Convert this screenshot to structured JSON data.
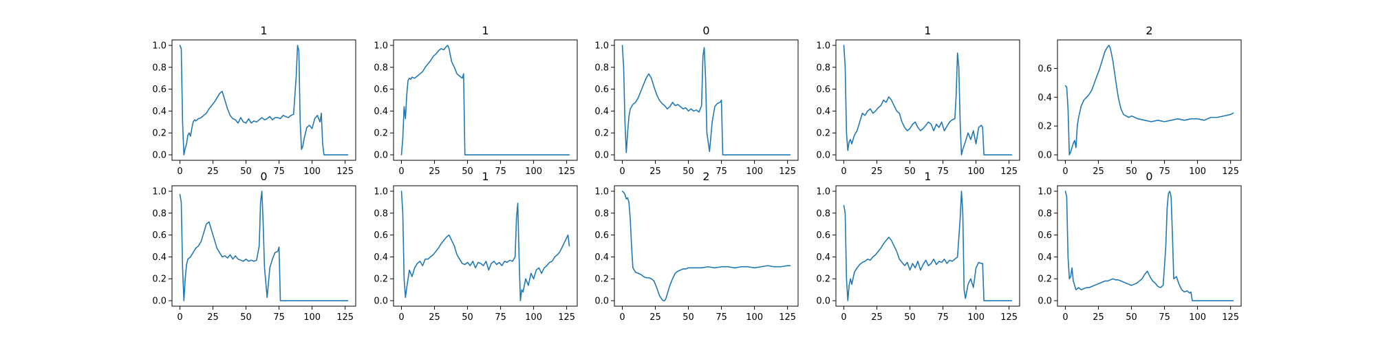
{
  "figure": {
    "background": "#ffffff",
    "line_color": "#1f77b4"
  },
  "chart_data": [
    {
      "type": "line",
      "title": "1",
      "xlim": [
        -6,
        133
      ],
      "ylim": [
        -0.05,
        1.05
      ],
      "xticks": [
        0,
        25,
        50,
        75,
        100,
        125
      ],
      "yticks": [
        0.0,
        0.2,
        0.4,
        0.6,
        0.8,
        1.0
      ],
      "ytick_labels": [
        "0.0",
        "0.2",
        "0.4",
        "0.6",
        "0.8",
        "1.0"
      ],
      "x": [
        0,
        1,
        2,
        3,
        4,
        5,
        6,
        7,
        8,
        9,
        10,
        11,
        12,
        14,
        16,
        18,
        20,
        22,
        24,
        26,
        28,
        30,
        32,
        34,
        36,
        38,
        40,
        42,
        44,
        46,
        48,
        50,
        52,
        54,
        56,
        58,
        60,
        62,
        64,
        66,
        68,
        70,
        72,
        74,
        76,
        78,
        80,
        82,
        84,
        86,
        88,
        89,
        90,
        91,
        92,
        93,
        94,
        96,
        98,
        100,
        102,
        104,
        106,
        107,
        108,
        109,
        112,
        115,
        120,
        127
      ],
      "y": [
        1.0,
        0.97,
        0.3,
        0.0,
        0.06,
        0.1,
        0.18,
        0.2,
        0.17,
        0.24,
        0.3,
        0.32,
        0.31,
        0.33,
        0.34,
        0.36,
        0.38,
        0.42,
        0.45,
        0.48,
        0.52,
        0.56,
        0.58,
        0.5,
        0.42,
        0.36,
        0.33,
        0.32,
        0.29,
        0.34,
        0.3,
        0.29,
        0.33,
        0.29,
        0.31,
        0.3,
        0.32,
        0.34,
        0.32,
        0.33,
        0.35,
        0.32,
        0.34,
        0.34,
        0.33,
        0.36,
        0.35,
        0.34,
        0.36,
        0.37,
        0.72,
        1.0,
        0.95,
        0.3,
        0.05,
        0.08,
        0.15,
        0.25,
        0.27,
        0.24,
        0.33,
        0.36,
        0.3,
        0.38,
        0.1,
        0.0,
        0.0,
        0.0,
        0.0,
        0.0
      ]
    },
    {
      "type": "line",
      "title": "1",
      "xlim": [
        -6,
        133
      ],
      "ylim": [
        -0.05,
        1.05
      ],
      "xticks": [
        0,
        25,
        50,
        75,
        100,
        125
      ],
      "yticks": [
        0.0,
        0.2,
        0.4,
        0.6,
        0.8,
        1.0
      ],
      "ytick_labels": [
        "0.0",
        "0.2",
        "0.4",
        "0.6",
        "0.8",
        "1.0"
      ],
      "x": [
        0,
        1,
        2,
        3,
        4,
        5,
        6,
        7,
        8,
        10,
        12,
        14,
        16,
        18,
        20,
        22,
        24,
        26,
        28,
        30,
        32,
        34,
        35,
        36,
        38,
        40,
        42,
        44,
        46,
        47,
        48,
        50,
        60,
        80,
        100,
        127
      ],
      "y": [
        0.0,
        0.15,
        0.44,
        0.33,
        0.55,
        0.68,
        0.7,
        0.69,
        0.71,
        0.7,
        0.72,
        0.74,
        0.76,
        0.8,
        0.83,
        0.86,
        0.9,
        0.92,
        0.95,
        0.97,
        0.96,
        0.99,
        1.0,
        0.97,
        0.85,
        0.8,
        0.74,
        0.72,
        0.7,
        0.74,
        0.0,
        0.0,
        0.0,
        0.0,
        0.0,
        0.0
      ]
    },
    {
      "type": "line",
      "title": "0",
      "xlim": [
        -6,
        133
      ],
      "ylim": [
        -0.05,
        1.05
      ],
      "xticks": [
        0,
        25,
        50,
        75,
        100,
        125
      ],
      "yticks": [
        0.0,
        0.2,
        0.4,
        0.6,
        0.8,
        1.0
      ],
      "ytick_labels": [
        "0.0",
        "0.2",
        "0.4",
        "0.6",
        "0.8",
        "1.0"
      ],
      "x": [
        0,
        1,
        2,
        3,
        4,
        5,
        6,
        8,
        10,
        12,
        14,
        16,
        18,
        20,
        22,
        24,
        26,
        28,
        30,
        32,
        34,
        36,
        38,
        40,
        42,
        44,
        46,
        48,
        50,
        52,
        54,
        56,
        58,
        60,
        61,
        62,
        63,
        64,
        66,
        68,
        70,
        72,
        74,
        75,
        76,
        80,
        90,
        100,
        127
      ],
      "y": [
        1.0,
        0.8,
        0.3,
        0.02,
        0.2,
        0.35,
        0.42,
        0.46,
        0.48,
        0.52,
        0.58,
        0.64,
        0.7,
        0.74,
        0.7,
        0.62,
        0.55,
        0.5,
        0.47,
        0.45,
        0.42,
        0.44,
        0.48,
        0.45,
        0.46,
        0.44,
        0.42,
        0.43,
        0.4,
        0.42,
        0.4,
        0.41,
        0.39,
        0.45,
        0.9,
        0.98,
        0.7,
        0.2,
        0.03,
        0.3,
        0.44,
        0.47,
        0.48,
        0.5,
        0.0,
        0.0,
        0.0,
        0.0,
        0.0
      ]
    },
    {
      "type": "line",
      "title": "1",
      "xlim": [
        -6,
        133
      ],
      "ylim": [
        -0.05,
        1.05
      ],
      "xticks": [
        0,
        25,
        50,
        75,
        100,
        125
      ],
      "yticks": [
        0.0,
        0.2,
        0.4,
        0.6,
        0.8,
        1.0
      ],
      "ytick_labels": [
        "0.0",
        "0.2",
        "0.4",
        "0.6",
        "0.8",
        "1.0"
      ],
      "x": [
        0,
        1,
        2,
        3,
        4,
        5,
        6,
        8,
        10,
        12,
        14,
        16,
        18,
        20,
        22,
        24,
        26,
        28,
        30,
        32,
        34,
        36,
        38,
        40,
        42,
        44,
        46,
        48,
        50,
        52,
        54,
        56,
        58,
        60,
        62,
        64,
        66,
        68,
        70,
        72,
        74,
        76,
        78,
        80,
        82,
        84,
        85,
        86,
        87,
        88,
        89,
        90,
        92,
        94,
        96,
        98,
        100,
        102,
        104,
        105,
        106,
        110,
        127
      ],
      "y": [
        1.0,
        0.8,
        0.2,
        0.04,
        0.12,
        0.14,
        0.1,
        0.18,
        0.22,
        0.3,
        0.38,
        0.36,
        0.4,
        0.42,
        0.38,
        0.4,
        0.43,
        0.45,
        0.5,
        0.48,
        0.53,
        0.5,
        0.45,
        0.4,
        0.38,
        0.3,
        0.25,
        0.22,
        0.24,
        0.28,
        0.3,
        0.25,
        0.22,
        0.24,
        0.27,
        0.3,
        0.28,
        0.22,
        0.28,
        0.25,
        0.3,
        0.22,
        0.26,
        0.3,
        0.32,
        0.33,
        0.55,
        0.93,
        0.8,
        0.3,
        0.0,
        0.05,
        0.12,
        0.2,
        0.14,
        0.22,
        0.1,
        0.25,
        0.27,
        0.25,
        0.0,
        0.0,
        0.0
      ]
    },
    {
      "type": "line",
      "title": "2",
      "xlim": [
        -6,
        133
      ],
      "ylim": [
        -0.038,
        0.798
      ],
      "xticks": [
        0,
        25,
        50,
        75,
        100,
        125
      ],
      "yticks": [
        0.0,
        0.2,
        0.4,
        0.6
      ],
      "ytick_labels": [
        "0.0",
        "0.2",
        "0.4",
        "0.6"
      ],
      "x": [
        0,
        1,
        2,
        3,
        4,
        5,
        6,
        7,
        8,
        9,
        10,
        12,
        14,
        16,
        18,
        20,
        22,
        24,
        26,
        28,
        30,
        32,
        33,
        34,
        36,
        38,
        40,
        42,
        44,
        46,
        48,
        50,
        55,
        60,
        65,
        70,
        75,
        80,
        85,
        90,
        95,
        100,
        105,
        110,
        115,
        120,
        125,
        127
      ],
      "y": [
        0.48,
        0.47,
        0.32,
        0.0,
        0.02,
        0.05,
        0.08,
        0.1,
        0.05,
        0.2,
        0.26,
        0.34,
        0.38,
        0.4,
        0.42,
        0.45,
        0.5,
        0.55,
        0.6,
        0.66,
        0.72,
        0.75,
        0.76,
        0.74,
        0.65,
        0.52,
        0.4,
        0.32,
        0.28,
        0.27,
        0.26,
        0.27,
        0.25,
        0.24,
        0.23,
        0.24,
        0.23,
        0.24,
        0.25,
        0.24,
        0.25,
        0.25,
        0.24,
        0.26,
        0.26,
        0.27,
        0.28,
        0.29
      ]
    },
    {
      "type": "line",
      "title": "0",
      "xlim": [
        -6,
        133
      ],
      "ylim": [
        -0.05,
        1.05
      ],
      "xticks": [
        0,
        25,
        50,
        75,
        100,
        125
      ],
      "yticks": [
        0.0,
        0.2,
        0.4,
        0.6,
        0.8,
        1.0
      ],
      "ytick_labels": [
        "0.0",
        "0.2",
        "0.4",
        "0.6",
        "0.8",
        "1.0"
      ],
      "x": [
        0,
        1,
        2,
        3,
        4,
        5,
        6,
        8,
        10,
        12,
        14,
        16,
        18,
        20,
        22,
        24,
        26,
        28,
        30,
        32,
        34,
        36,
        38,
        40,
        42,
        44,
        46,
        48,
        50,
        52,
        54,
        56,
        58,
        60,
        61,
        62,
        63,
        64,
        66,
        68,
        70,
        72,
        74,
        75,
        76,
        80,
        90,
        100,
        127
      ],
      "y": [
        0.97,
        0.9,
        0.3,
        0.0,
        0.2,
        0.33,
        0.38,
        0.4,
        0.44,
        0.48,
        0.5,
        0.54,
        0.62,
        0.7,
        0.72,
        0.64,
        0.56,
        0.48,
        0.44,
        0.4,
        0.41,
        0.39,
        0.42,
        0.38,
        0.41,
        0.38,
        0.37,
        0.36,
        0.38,
        0.36,
        0.37,
        0.36,
        0.37,
        0.5,
        0.9,
        1.0,
        0.7,
        0.3,
        0.03,
        0.3,
        0.38,
        0.44,
        0.45,
        0.49,
        0.0,
        0.0,
        0.0,
        0.0,
        0.0
      ]
    },
    {
      "type": "line",
      "title": "1",
      "xlim": [
        -6,
        133
      ],
      "ylim": [
        -0.05,
        1.05
      ],
      "xticks": [
        0,
        25,
        50,
        75,
        100,
        125
      ],
      "yticks": [
        0.0,
        0.2,
        0.4,
        0.6,
        0.8,
        1.0
      ],
      "ytick_labels": [
        "0.0",
        "0.2",
        "0.4",
        "0.6",
        "0.8",
        "1.0"
      ],
      "x": [
        0,
        1,
        2,
        3,
        4,
        5,
        6,
        8,
        10,
        12,
        14,
        16,
        18,
        20,
        22,
        24,
        26,
        28,
        30,
        32,
        34,
        36,
        38,
        40,
        42,
        44,
        46,
        48,
        50,
        52,
        54,
        56,
        58,
        60,
        62,
        64,
        66,
        68,
        70,
        72,
        74,
        76,
        78,
        80,
        82,
        84,
        86,
        87,
        88,
        89,
        90,
        91,
        92,
        94,
        96,
        98,
        100,
        102,
        104,
        106,
        108,
        110,
        112,
        114,
        116,
        118,
        120,
        122,
        124,
        126,
        127
      ],
      "y": [
        1.0,
        0.8,
        0.2,
        0.03,
        0.12,
        0.2,
        0.28,
        0.22,
        0.3,
        0.34,
        0.36,
        0.32,
        0.38,
        0.38,
        0.4,
        0.42,
        0.45,
        0.48,
        0.52,
        0.55,
        0.58,
        0.6,
        0.55,
        0.5,
        0.42,
        0.38,
        0.34,
        0.33,
        0.35,
        0.32,
        0.36,
        0.3,
        0.35,
        0.34,
        0.32,
        0.36,
        0.28,
        0.34,
        0.36,
        0.33,
        0.35,
        0.32,
        0.36,
        0.35,
        0.37,
        0.36,
        0.4,
        0.75,
        0.89,
        0.4,
        0.0,
        0.1,
        0.08,
        0.2,
        0.14,
        0.25,
        0.2,
        0.28,
        0.3,
        0.25,
        0.3,
        0.32,
        0.35,
        0.36,
        0.4,
        0.42,
        0.45,
        0.5,
        0.55,
        0.6,
        0.5
      ]
    },
    {
      "type": "line",
      "title": "2",
      "xlim": [
        -6,
        133
      ],
      "ylim": [
        -0.05,
        1.05
      ],
      "xticks": [
        0,
        25,
        50,
        75,
        100,
        125
      ],
      "yticks": [
        0.0,
        0.2,
        0.4,
        0.6,
        0.8,
        1.0
      ],
      "ytick_labels": [
        "0.0",
        "0.2",
        "0.4",
        "0.6",
        "0.8",
        "1.0"
      ],
      "x": [
        0,
        1,
        2,
        3,
        4,
        5,
        6,
        7,
        8,
        9,
        10,
        12,
        14,
        16,
        18,
        20,
        22,
        24,
        26,
        28,
        30,
        31,
        32,
        33,
        34,
        36,
        38,
        40,
        42,
        44,
        46,
        48,
        50,
        55,
        60,
        65,
        70,
        75,
        80,
        85,
        90,
        95,
        100,
        105,
        110,
        115,
        120,
        125,
        127
      ],
      "y": [
        1.0,
        0.99,
        0.97,
        0.93,
        0.94,
        0.9,
        0.75,
        0.5,
        0.3,
        0.28,
        0.26,
        0.25,
        0.24,
        0.22,
        0.21,
        0.21,
        0.2,
        0.18,
        0.12,
        0.05,
        0.01,
        0.0,
        0.0,
        0.02,
        0.06,
        0.14,
        0.2,
        0.25,
        0.27,
        0.28,
        0.29,
        0.29,
        0.3,
        0.3,
        0.3,
        0.31,
        0.3,
        0.31,
        0.31,
        0.3,
        0.31,
        0.31,
        0.3,
        0.31,
        0.32,
        0.31,
        0.31,
        0.32,
        0.32
      ]
    },
    {
      "type": "line",
      "title": "1",
      "xlim": [
        -6,
        133
      ],
      "ylim": [
        -0.05,
        1.05
      ],
      "xticks": [
        0,
        25,
        50,
        75,
        100,
        125
      ],
      "yticks": [
        0.0,
        0.2,
        0.4,
        0.6,
        0.8,
        1.0
      ],
      "ytick_labels": [
        "0.0",
        "0.2",
        "0.4",
        "0.6",
        "0.8",
        "1.0"
      ],
      "x": [
        0,
        1,
        2,
        3,
        4,
        5,
        6,
        8,
        10,
        12,
        14,
        16,
        18,
        20,
        22,
        24,
        26,
        28,
        30,
        32,
        34,
        36,
        38,
        40,
        42,
        44,
        46,
        48,
        50,
        52,
        54,
        56,
        58,
        60,
        62,
        64,
        66,
        68,
        70,
        72,
        74,
        76,
        78,
        80,
        82,
        84,
        86,
        88,
        89,
        90,
        91,
        92,
        94,
        96,
        98,
        100,
        102,
        104,
        105,
        106,
        110,
        127
      ],
      "y": [
        0.87,
        0.8,
        0.2,
        0.0,
        0.14,
        0.2,
        0.15,
        0.26,
        0.3,
        0.33,
        0.35,
        0.36,
        0.38,
        0.37,
        0.4,
        0.42,
        0.45,
        0.48,
        0.52,
        0.55,
        0.58,
        0.55,
        0.5,
        0.45,
        0.38,
        0.35,
        0.32,
        0.35,
        0.28,
        0.34,
        0.3,
        0.36,
        0.28,
        0.33,
        0.37,
        0.32,
        0.34,
        0.38,
        0.33,
        0.36,
        0.35,
        0.38,
        0.34,
        0.37,
        0.36,
        0.38,
        0.4,
        0.75,
        1.0,
        0.8,
        0.1,
        0.02,
        0.15,
        0.2,
        0.12,
        0.3,
        0.35,
        0.34,
        0.34,
        0.0,
        0.0,
        0.0
      ]
    },
    {
      "type": "line",
      "title": "0",
      "xlim": [
        -6,
        133
      ],
      "ylim": [
        -0.05,
        1.05
      ],
      "xticks": [
        0,
        25,
        50,
        75,
        100,
        125
      ],
      "yticks": [
        0.0,
        0.2,
        0.4,
        0.6,
        0.8,
        1.0
      ],
      "ytick_labels": [
        "0.0",
        "0.2",
        "0.4",
        "0.6",
        "0.8",
        "1.0"
      ],
      "x": [
        0,
        1,
        2,
        3,
        4,
        5,
        6,
        8,
        10,
        12,
        14,
        16,
        18,
        20,
        22,
        24,
        26,
        28,
        30,
        32,
        34,
        36,
        38,
        40,
        42,
        44,
        46,
        48,
        50,
        52,
        54,
        56,
        58,
        60,
        62,
        64,
        66,
        68,
        70,
        72,
        74,
        76,
        77,
        78,
        79,
        80,
        81,
        82,
        84,
        86,
        88,
        90,
        92,
        94,
        95,
        96,
        100,
        110,
        127
      ],
      "y": [
        1.0,
        0.95,
        0.4,
        0.2,
        0.22,
        0.3,
        0.18,
        0.1,
        0.12,
        0.1,
        0.11,
        0.12,
        0.12,
        0.13,
        0.14,
        0.15,
        0.16,
        0.17,
        0.18,
        0.18,
        0.19,
        0.2,
        0.19,
        0.19,
        0.18,
        0.17,
        0.16,
        0.15,
        0.14,
        0.15,
        0.16,
        0.18,
        0.2,
        0.24,
        0.27,
        0.22,
        0.18,
        0.16,
        0.13,
        0.12,
        0.14,
        0.5,
        0.85,
        0.98,
        1.0,
        0.95,
        0.6,
        0.2,
        0.22,
        0.15,
        0.1,
        0.08,
        0.09,
        0.07,
        0.08,
        0.0,
        0.0,
        0.0,
        0.0
      ]
    }
  ]
}
